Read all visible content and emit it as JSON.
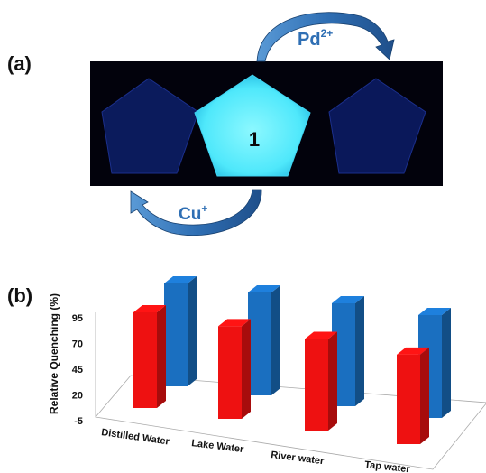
{
  "panel_a": {
    "label": "(a)",
    "sample_label": "1",
    "ion_top": "Pd",
    "ion_top_charge": "2+",
    "ion_bottom": "Cu",
    "ion_bottom_charge": "+",
    "colors": {
      "glow": "#5ef2ff",
      "dim": "#0a1a5e",
      "arrow": "#2f6fb4"
    }
  },
  "panel_b": {
    "label": "(b)"
  },
  "chart_data": {
    "type": "bar",
    "style": "3d",
    "categories": [
      "Distilled Water",
      "Lake Water",
      "River water",
      "Tap water"
    ],
    "series": [
      {
        "values": [
          88,
          85,
          84,
          82
        ],
        "color": "#ee1111"
      },
      {
        "values": [
          95,
          95,
          95,
          95
        ],
        "color": "#1a6fc0"
      }
    ],
    "ylabel": "Relative Quenching (%)",
    "yticks": [
      -5,
      20,
      45,
      70,
      95
    ],
    "ylim": [
      -5,
      95
    ],
    "grid": false
  }
}
